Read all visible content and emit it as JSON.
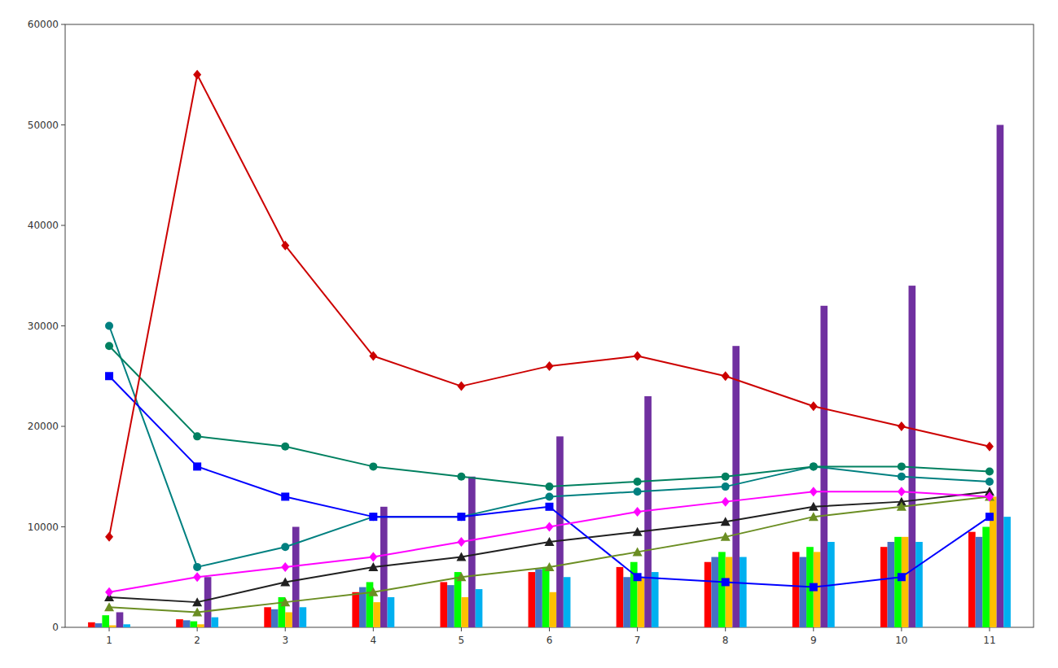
{
  "chart_data": {
    "type": "bar",
    "x": [
      1,
      2,
      3,
      4,
      5,
      6,
      7,
      8,
      9,
      10,
      11
    ],
    "xlim": [
      0.5,
      11.5
    ],
    "xticks": [
      1,
      2,
      3,
      4,
      5,
      6,
      7,
      8,
      9,
      10,
      11
    ],
    "ylim": [
      0,
      60000
    ],
    "yticks": [
      0,
      10000,
      20000,
      30000,
      40000,
      50000,
      60000
    ],
    "grid": false,
    "series": [
      {
        "type": "bar",
        "color": "#ff0000",
        "values": [
          500,
          800,
          2000,
          3500,
          4500,
          5500,
          6000,
          6500,
          7500,
          8000,
          9500
        ]
      },
      {
        "type": "bar",
        "color": "#4472c4",
        "values": [
          400,
          700,
          1800,
          4000,
          4200,
          5800,
          5000,
          7000,
          7000,
          8500,
          9000
        ]
      },
      {
        "type": "bar",
        "color": "#00ff00",
        "values": [
          1200,
          600,
          3000,
          4500,
          5500,
          6000,
          6500,
          7500,
          8000,
          9000,
          10000
        ]
      },
      {
        "type": "bar",
        "color": "#ffc000",
        "values": [
          200,
          300,
          1500,
          2500,
          3000,
          3500,
          5000,
          7000,
          7500,
          9000,
          13000
        ]
      },
      {
        "type": "bar",
        "color": "#7030a0",
        "values": [
          1500,
          5000,
          10000,
          12000,
          15000,
          19000,
          23000,
          28000,
          32000,
          34000,
          50000
        ]
      },
      {
        "type": "bar",
        "color": "#00b0f0",
        "values": [
          300,
          1000,
          2000,
          3000,
          3800,
          5000,
          5500,
          7000,
          8500,
          8500,
          11000
        ]
      },
      {
        "type": "line",
        "color": "#202020",
        "marker": "triangle",
        "values": [
          3000,
          2500,
          4500,
          6000,
          7000,
          8500,
          9500,
          10500,
          12000,
          12500,
          13500
        ]
      },
      {
        "type": "line",
        "color": "#008080",
        "marker": "circle",
        "values": [
          30000,
          6000,
          8000,
          11000,
          11000,
          13000,
          13500,
          14000,
          16000,
          15000,
          14500
        ]
      },
      {
        "type": "line",
        "color": "#008060",
        "marker": "circle",
        "values": [
          28000,
          19000,
          18000,
          16000,
          15000,
          14000,
          14500,
          15000,
          16000,
          16000,
          15500
        ]
      },
      {
        "type": "line",
        "color": "#0000ff",
        "marker": "square",
        "values": [
          25000,
          16000,
          13000,
          11000,
          11000,
          12000,
          5000,
          4500,
          4000,
          5000,
          11000
        ]
      },
      {
        "type": "line",
        "color": "#6b8e23",
        "marker": "triangle",
        "values": [
          2000,
          1500,
          2500,
          3500,
          5000,
          6000,
          7500,
          9000,
          11000,
          12000,
          13000
        ]
      },
      {
        "type": "line",
        "color": "#ff00ff",
        "marker": "diamond",
        "values": [
          3500,
          5000,
          6000,
          7000,
          8500,
          10000,
          11500,
          12500,
          13500,
          13500,
          13000
        ]
      },
      {
        "type": "line",
        "color": "#cc0000",
        "marker": "diamond",
        "values": [
          9000,
          55000,
          38000,
          27000,
          24000,
          26000,
          27000,
          25000,
          22000,
          20000,
          18000
        ]
      }
    ]
  }
}
